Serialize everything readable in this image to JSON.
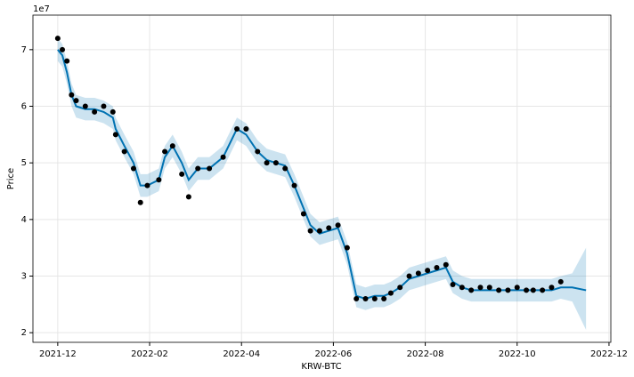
{
  "chart_data": {
    "type": "forecast",
    "xlabel": "KRW-BTC",
    "ylabel": "Price",
    "y_offset_label": "1e7",
    "xlim": [
      -0.54,
      12.04
    ],
    "ylim": [
      1.83,
      7.61
    ],
    "grid": true,
    "xticks": [
      {
        "value": 0,
        "label": "2021-12"
      },
      {
        "value": 2,
        "label": "2022-02"
      },
      {
        "value": 4,
        "label": "2022-04"
      },
      {
        "value": 6,
        "label": "2022-06"
      },
      {
        "value": 8,
        "label": "2022-08"
      },
      {
        "value": 10,
        "label": "2022-10"
      },
      {
        "value": 12,
        "label": "2022-12"
      }
    ],
    "yticks": [
      2,
      3,
      4,
      5,
      6,
      7
    ],
    "series": [
      {
        "type": "scatter",
        "color": "#000000",
        "x": [
          0,
          0.1,
          0.2,
          0.3,
          0.4,
          0.6,
          0.8,
          1.0,
          1.2,
          1.26,
          1.45,
          1.65,
          1.8,
          1.95,
          2.2,
          2.33,
          2.5,
          2.7,
          2.85,
          3.05,
          3.3,
          3.6,
          3.9,
          4.1,
          4.35,
          4.55,
          4.75,
          4.95,
          5.15,
          5.35,
          5.5,
          5.7,
          5.9,
          6.1,
          6.3,
          6.5,
          6.7,
          6.9,
          7.1,
          7.25,
          7.45,
          7.65,
          7.85,
          8.05,
          8.25,
          8.45,
          8.6,
          8.8,
          9.0,
          9.2,
          9.4,
          9.6,
          9.8,
          10.0,
          10.2,
          10.35,
          10.55,
          10.75,
          10.95
        ],
        "values": [
          7.2,
          7.0,
          6.8,
          6.2,
          6.1,
          6.0,
          5.9,
          6.0,
          5.9,
          5.5,
          5.2,
          4.9,
          4.3,
          4.6,
          4.7,
          5.2,
          5.3,
          4.8,
          4.4,
          4.9,
          4.9,
          5.1,
          5.6,
          5.6,
          5.2,
          5.0,
          5.0,
          4.9,
          4.6,
          4.1,
          3.8,
          3.8,
          3.85,
          3.9,
          3.5,
          2.6,
          2.6,
          2.6,
          2.6,
          2.7,
          2.8,
          3.0,
          3.05,
          3.1,
          3.15,
          3.2,
          2.85,
          2.8,
          2.75,
          2.8,
          2.8,
          2.75,
          2.75,
          2.8,
          2.75,
          2.75,
          2.75,
          2.8,
          2.9
        ]
      },
      {
        "type": "line",
        "color": "#0072B2",
        "x": [
          0,
          0.1,
          0.2,
          0.3,
          0.4,
          0.6,
          0.8,
          1.0,
          1.2,
          1.26,
          1.45,
          1.65,
          1.8,
          1.95,
          2.2,
          2.33,
          2.5,
          2.7,
          2.85,
          3.05,
          3.3,
          3.6,
          3.9,
          4.1,
          4.35,
          4.55,
          4.75,
          4.95,
          5.15,
          5.35,
          5.5,
          5.7,
          5.9,
          6.1,
          6.3,
          6.5,
          6.7,
          6.9,
          7.1,
          7.25,
          7.45,
          7.65,
          7.85,
          8.05,
          8.25,
          8.45,
          8.6,
          8.8,
          9.0,
          9.2,
          9.4,
          9.6,
          9.8,
          10.0,
          10.2,
          10.35,
          10.55,
          10.75,
          10.95,
          11.2,
          11.5
        ],
        "values": [
          7.0,
          6.9,
          6.6,
          6.2,
          6.0,
          5.95,
          5.95,
          5.9,
          5.8,
          5.6,
          5.3,
          5.0,
          4.6,
          4.6,
          4.7,
          5.1,
          5.3,
          5.0,
          4.7,
          4.9,
          4.9,
          5.1,
          5.6,
          5.5,
          5.2,
          5.05,
          5.0,
          4.95,
          4.6,
          4.2,
          3.9,
          3.75,
          3.8,
          3.85,
          3.4,
          2.65,
          2.6,
          2.65,
          2.65,
          2.7,
          2.8,
          2.95,
          3.0,
          3.05,
          3.1,
          3.15,
          2.9,
          2.8,
          2.75,
          2.75,
          2.75,
          2.75,
          2.75,
          2.75,
          2.75,
          2.75,
          2.75,
          2.75,
          2.8,
          2.8,
          2.75
        ],
        "upper": [
          7.2,
          7.1,
          6.8,
          6.4,
          6.2,
          6.15,
          6.15,
          6.1,
          6.0,
          5.8,
          5.5,
          5.2,
          4.8,
          4.8,
          4.9,
          5.3,
          5.5,
          5.2,
          4.9,
          5.1,
          5.1,
          5.3,
          5.8,
          5.7,
          5.4,
          5.25,
          5.2,
          5.15,
          4.8,
          4.4,
          4.1,
          3.95,
          4.0,
          4.05,
          3.6,
          2.85,
          2.8,
          2.85,
          2.85,
          2.9,
          3.0,
          3.15,
          3.2,
          3.25,
          3.3,
          3.35,
          3.1,
          3.0,
          2.95,
          2.95,
          2.95,
          2.95,
          2.95,
          2.95,
          2.95,
          2.95,
          2.95,
          2.95,
          3.0,
          3.05,
          3.5
        ],
        "lower": [
          6.8,
          6.7,
          6.4,
          6.0,
          5.8,
          5.75,
          5.75,
          5.7,
          5.6,
          5.4,
          5.1,
          4.8,
          4.4,
          4.4,
          4.5,
          4.9,
          5.1,
          4.8,
          4.5,
          4.7,
          4.7,
          4.9,
          5.4,
          5.3,
          5.0,
          4.85,
          4.8,
          4.75,
          4.4,
          4.0,
          3.7,
          3.55,
          3.6,
          3.65,
          3.2,
          2.45,
          2.4,
          2.45,
          2.45,
          2.5,
          2.6,
          2.75,
          2.8,
          2.85,
          2.9,
          2.95,
          2.7,
          2.6,
          2.55,
          2.55,
          2.55,
          2.55,
          2.55,
          2.55,
          2.55,
          2.55,
          2.55,
          2.55,
          2.6,
          2.55,
          2.05
        ]
      }
    ]
  }
}
